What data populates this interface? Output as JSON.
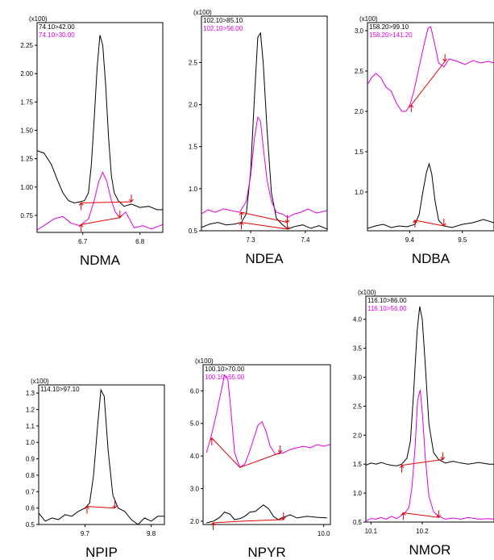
{
  "colors": {
    "quantifier": "#000000",
    "qualifier": "#e000e0",
    "baseline": "#e00000",
    "axis": "#000000",
    "background": "#ffffff"
  },
  "chart_data": [
    {
      "type": "line",
      "name_label": "NDMA",
      "y_multiplier": "(x100)",
      "transitions": [
        "74.10>42.00",
        "74.10>30.00"
      ],
      "xlim": [
        6.62,
        6.84
      ],
      "ylim": [
        0.6,
        2.45
      ],
      "x_ticks": [
        6.7,
        6.8
      ],
      "x_tick_labels": [
        "6.7",
        "6.8"
      ],
      "y_ticks": [
        0.75,
        1.0,
        1.25,
        1.5,
        1.75,
        2.0,
        2.25
      ],
      "y_tick_labels": [
        "0.75",
        "1.00",
        "1.25",
        "1.50",
        "1.75",
        "2.00",
        "2.25"
      ],
      "series": [
        {
          "color_key": "quantifier",
          "x": [
            6.62,
            6.632,
            6.645,
            6.655,
            6.665,
            6.675,
            6.685,
            6.695,
            6.703,
            6.71,
            6.715,
            6.72,
            6.725,
            6.73,
            6.735,
            6.74,
            6.745,
            6.75,
            6.755,
            6.762,
            6.772,
            6.785,
            6.8,
            6.815,
            6.83,
            6.84
          ],
          "y": [
            1.32,
            1.3,
            1.2,
            1.07,
            0.95,
            0.88,
            0.86,
            0.87,
            0.88,
            0.95,
            1.2,
            1.6,
            2.05,
            2.34,
            2.25,
            1.9,
            1.45,
            1.1,
            0.95,
            0.88,
            0.83,
            0.85,
            0.82,
            0.83,
            0.8,
            0.8
          ]
        },
        {
          "color_key": "qualifier",
          "x": [
            6.62,
            6.635,
            6.65,
            6.665,
            6.68,
            6.695,
            6.71,
            6.72,
            6.728,
            6.735,
            6.742,
            6.75,
            6.757,
            6.765,
            6.775,
            6.79,
            6.805,
            6.82,
            6.84
          ],
          "y": [
            0.62,
            0.67,
            0.72,
            0.74,
            0.68,
            0.66,
            0.72,
            0.88,
            1.05,
            1.13,
            1.05,
            0.88,
            0.78,
            0.73,
            0.78,
            0.64,
            0.66,
            0.63,
            0.67
          ]
        }
      ],
      "baselines": [
        {
          "x": [
            6.697,
            6.785
          ],
          "y": [
            0.86,
            0.87
          ]
        },
        {
          "x": [
            6.697,
            6.765
          ],
          "y": [
            0.67,
            0.73
          ]
        }
      ]
    },
    {
      "type": "line",
      "name_label": "NDEA",
      "y_multiplier": "(x100)",
      "transitions": [
        "102.10>85.10",
        "102.10>56.00"
      ],
      "xlim": [
        7.21,
        7.44
      ],
      "ylim": [
        0.5,
        3.05
      ],
      "x_ticks": [
        7.3,
        7.4
      ],
      "x_tick_labels": [
        "7.3",
        "7.4"
      ],
      "y_ticks": [
        0.5,
        1.0,
        1.5,
        2.0,
        2.5
      ],
      "y_tick_labels": [
        "0.5",
        "1.0",
        "1.5",
        "2.0",
        "2.5"
      ],
      "series": [
        {
          "color_key": "quantifier",
          "x": [
            7.21,
            7.225,
            7.24,
            7.255,
            7.27,
            7.283,
            7.292,
            7.3,
            7.307,
            7.313,
            7.318,
            7.323,
            7.33,
            7.338,
            7.347,
            7.357,
            7.368,
            7.38,
            7.395,
            7.41,
            7.425,
            7.44
          ],
          "y": [
            0.54,
            0.58,
            0.6,
            0.57,
            0.58,
            0.6,
            0.7,
            1.2,
            2.1,
            2.8,
            2.85,
            2.5,
            1.7,
            0.95,
            0.65,
            0.58,
            0.52,
            0.55,
            0.57,
            0.53,
            0.56,
            0.52
          ]
        },
        {
          "color_key": "qualifier",
          "x": [
            7.21,
            7.222,
            7.235,
            7.25,
            7.265,
            7.28,
            7.292,
            7.3,
            7.307,
            7.313,
            7.318,
            7.323,
            7.33,
            7.338,
            7.347,
            7.357,
            7.368,
            7.38,
            7.392,
            7.405,
            7.42,
            7.44
          ],
          "y": [
            0.7,
            0.75,
            0.72,
            0.76,
            0.74,
            0.72,
            0.85,
            1.15,
            1.6,
            1.85,
            1.8,
            1.5,
            1.1,
            0.85,
            0.72,
            0.7,
            0.66,
            0.7,
            0.72,
            0.76,
            0.71,
            0.74
          ]
        }
      ],
      "baselines": [
        {
          "x": [
            7.283,
            7.367
          ],
          "y": [
            0.72,
            0.6
          ]
        },
        {
          "x": [
            7.283,
            7.367
          ],
          "y": [
            0.6,
            0.52
          ]
        }
      ]
    },
    {
      "type": "line",
      "name_label": "NDBA",
      "y_multiplier": "(x100)",
      "transitions": [
        "158.20>99.10",
        "158.20>141.20"
      ],
      "xlim": [
        9.32,
        9.56
      ],
      "ylim": [
        0.52,
        3.1
      ],
      "x_ticks": [
        9.4,
        9.5
      ],
      "x_tick_labels": [
        "9.4",
        "9.5"
      ],
      "y_ticks": [
        1.0,
        1.5,
        2.0,
        2.5,
        3.0
      ],
      "y_tick_labels": [
        "1.0",
        "1.5",
        "2.0",
        "2.5",
        "3.0"
      ],
      "series": [
        {
          "color_key": "quantifier",
          "x": [
            9.32,
            9.335,
            9.35,
            9.365,
            9.38,
            9.395,
            9.41,
            9.418,
            9.425,
            9.432,
            9.437,
            9.442,
            9.448,
            9.455,
            9.465,
            9.48,
            9.5,
            9.52,
            9.54,
            9.56
          ],
          "y": [
            0.55,
            0.58,
            0.6,
            0.56,
            0.58,
            0.57,
            0.6,
            0.72,
            1.0,
            1.25,
            1.35,
            1.22,
            0.9,
            0.65,
            0.58,
            0.56,
            0.6,
            0.62,
            0.66,
            0.62
          ]
        },
        {
          "color_key": "qualifier",
          "x": [
            9.32,
            9.328,
            9.336,
            9.345,
            9.355,
            9.365,
            9.375,
            9.385,
            9.393,
            9.4,
            9.408,
            9.418,
            9.428,
            9.435,
            9.44,
            9.447,
            9.455,
            9.465,
            9.475,
            9.49,
            9.505,
            9.52,
            9.535,
            9.55,
            9.56
          ],
          "y": [
            2.33,
            2.42,
            2.47,
            2.42,
            2.3,
            2.25,
            2.1,
            2.0,
            2.0,
            2.07,
            2.25,
            2.55,
            2.85,
            3.03,
            3.05,
            2.85,
            2.6,
            2.55,
            2.65,
            2.62,
            2.58,
            2.63,
            2.6,
            2.62,
            2.6
          ]
        }
      ],
      "baselines": [
        {
          "x": [
            9.403,
            9.467
          ],
          "y": [
            2.08,
            2.62
          ]
        },
        {
          "x": [
            9.41,
            9.465
          ],
          "y": [
            0.65,
            0.58
          ]
        }
      ]
    },
    {
      "type": "line",
      "name_label": "NPIP",
      "y_multiplier": "(x100)",
      "transitions": [
        "114.10>97.10"
      ],
      "xlim": [
        9.63,
        9.82
      ],
      "ylim": [
        0.5,
        1.35
      ],
      "x_ticks": [
        9.7,
        9.8
      ],
      "x_tick_labels": [
        "9.7",
        "9.8"
      ],
      "y_ticks": [
        0.5,
        0.6,
        0.7,
        0.8,
        0.9,
        1.0,
        1.1,
        1.2,
        1.3
      ],
      "y_tick_labels": [
        "0.5",
        "0.6",
        "0.7",
        "0.8",
        "0.9",
        "1.0",
        "1.1",
        "1.2",
        "1.3"
      ],
      "series": [
        {
          "color_key": "quantifier",
          "x": [
            9.63,
            9.64,
            9.65,
            9.66,
            9.67,
            9.68,
            9.69,
            9.7,
            9.707,
            9.713,
            9.719,
            9.724,
            9.729,
            9.735,
            9.742,
            9.75,
            9.76,
            9.77,
            9.78,
            9.79,
            9.8,
            9.81,
            9.82
          ],
          "y": [
            0.57,
            0.52,
            0.54,
            0.53,
            0.56,
            0.55,
            0.58,
            0.6,
            0.63,
            0.8,
            1.1,
            1.32,
            1.28,
            0.95,
            0.68,
            0.6,
            0.58,
            0.53,
            0.5,
            0.54,
            0.52,
            0.55,
            0.55
          ]
        }
      ],
      "baselines": [
        {
          "x": [
            9.703,
            9.745
          ],
          "y": [
            0.61,
            0.6
          ]
        }
      ]
    },
    {
      "type": "line",
      "name_label": "NPYR",
      "y_multiplier": "(x100)",
      "transitions": [
        "100.10>70.00",
        "100.10>55.00"
      ],
      "xlim": [
        9.82,
        10.01
      ],
      "ylim": [
        1.9,
        6.8
      ],
      "x_ticks": [
        10.0
      ],
      "x_tick_labels": [
        "10.0"
      ],
      "y_ticks": [
        2.0,
        3.0,
        4.0,
        5.0,
        6.0
      ],
      "y_tick_labels": [
        "2.0",
        "3.0",
        "4.0",
        "5.0",
        "6.0"
      ],
      "series": [
        {
          "color_key": "quantifier",
          "x": [
            9.825,
            9.835,
            9.845,
            9.852,
            9.86,
            9.867,
            9.875,
            9.882,
            9.89,
            9.898,
            9.905,
            9.91,
            9.918,
            9.925,
            9.932,
            9.94,
            9.95,
            9.96,
            9.975,
            9.99,
            10.005
          ],
          "y": [
            1.95,
            2.0,
            2.12,
            2.28,
            2.22,
            2.05,
            2.08,
            2.15,
            2.28,
            2.3,
            2.42,
            2.5,
            2.38,
            2.15,
            2.05,
            2.12,
            2.2,
            2.1,
            2.15,
            2.12,
            2.1
          ]
        },
        {
          "color_key": "qualifier",
          "x": [
            9.825,
            9.832,
            9.84,
            9.847,
            9.852,
            9.857,
            9.862,
            9.867,
            9.875,
            9.882,
            9.888,
            9.895,
            9.902,
            9.908,
            9.914,
            9.92,
            9.928,
            9.94,
            9.95,
            9.96,
            9.97,
            9.98,
            9.99,
            10.0,
            10.01
          ],
          "y": [
            4.1,
            4.6,
            5.3,
            6.0,
            6.48,
            6.35,
            5.3,
            4.1,
            3.65,
            3.75,
            4.05,
            4.5,
            4.95,
            5.05,
            4.75,
            4.3,
            4.05,
            4.1,
            4.2,
            4.25,
            4.3,
            4.25,
            4.35,
            4.3,
            4.35
          ]
        }
      ],
      "baselines": [
        {
          "x": [
            9.833,
            9.875,
            9.935
          ],
          "y": [
            4.55,
            3.65,
            4.1
          ]
        },
        {
          "x": [
            9.835,
            9.875,
            9.94
          ],
          "y": [
            1.95,
            2.0,
            2.05
          ]
        }
      ]
    },
    {
      "type": "line",
      "name_label": "NMOR",
      "y_multiplier": "(x100)",
      "transitions": [
        "116.10>86.00",
        "116.10>56.00"
      ],
      "xlim": [
        10.09,
        10.34
      ],
      "ylim": [
        0.5,
        4.4
      ],
      "x_ticks": [
        10.1,
        10.2
      ],
      "x_tick_labels": [
        "10.1",
        "10.2"
      ],
      "y_ticks": [
        0.5,
        1.0,
        1.5,
        2.0,
        2.5,
        3.0,
        3.5,
        4.0
      ],
      "y_tick_labels": [
        "0.5",
        "1.0",
        "1.5",
        "2.0",
        "2.5",
        "3.0",
        "3.5",
        "4.0"
      ],
      "series": [
        {
          "color_key": "quantifier",
          "x": [
            10.09,
            10.1,
            10.11,
            10.12,
            10.13,
            10.14,
            10.15,
            10.16,
            10.17,
            10.177,
            10.183,
            10.19,
            10.195,
            10.2,
            10.206,
            10.213,
            10.222,
            10.232,
            10.245,
            10.26,
            10.275,
            10.29,
            10.31,
            10.33,
            10.34
          ],
          "y": [
            1.48,
            1.52,
            1.5,
            1.53,
            1.5,
            1.48,
            1.47,
            1.5,
            1.6,
            1.9,
            2.7,
            3.8,
            4.22,
            4.0,
            3.2,
            2.2,
            1.7,
            1.58,
            1.52,
            1.55,
            1.52,
            1.5,
            1.53,
            1.5,
            1.5
          ]
        },
        {
          "color_key": "qualifier",
          "x": [
            10.09,
            10.1,
            10.11,
            10.12,
            10.13,
            10.14,
            10.15,
            10.16,
            10.168,
            10.174,
            10.18,
            10.186,
            10.191,
            10.196,
            10.2,
            10.206,
            10.213,
            10.222,
            10.232,
            10.245,
            10.26,
            10.275,
            10.29,
            10.31,
            10.33,
            10.34
          ],
          "y": [
            0.52,
            0.56,
            0.55,
            0.58,
            0.55,
            0.6,
            0.56,
            0.62,
            0.68,
            0.75,
            1.1,
            1.8,
            2.6,
            2.78,
            2.4,
            1.6,
            0.95,
            0.68,
            0.6,
            0.55,
            0.57,
            0.55,
            0.58,
            0.55,
            0.56,
            0.55
          ]
        }
      ],
      "baselines": [
        {
          "x": [
            10.16,
            10.24
          ],
          "y": [
            1.48,
            1.58
          ]
        },
        {
          "x": [
            10.163,
            10.232
          ],
          "y": [
            0.66,
            0.58
          ]
        }
      ]
    }
  ]
}
